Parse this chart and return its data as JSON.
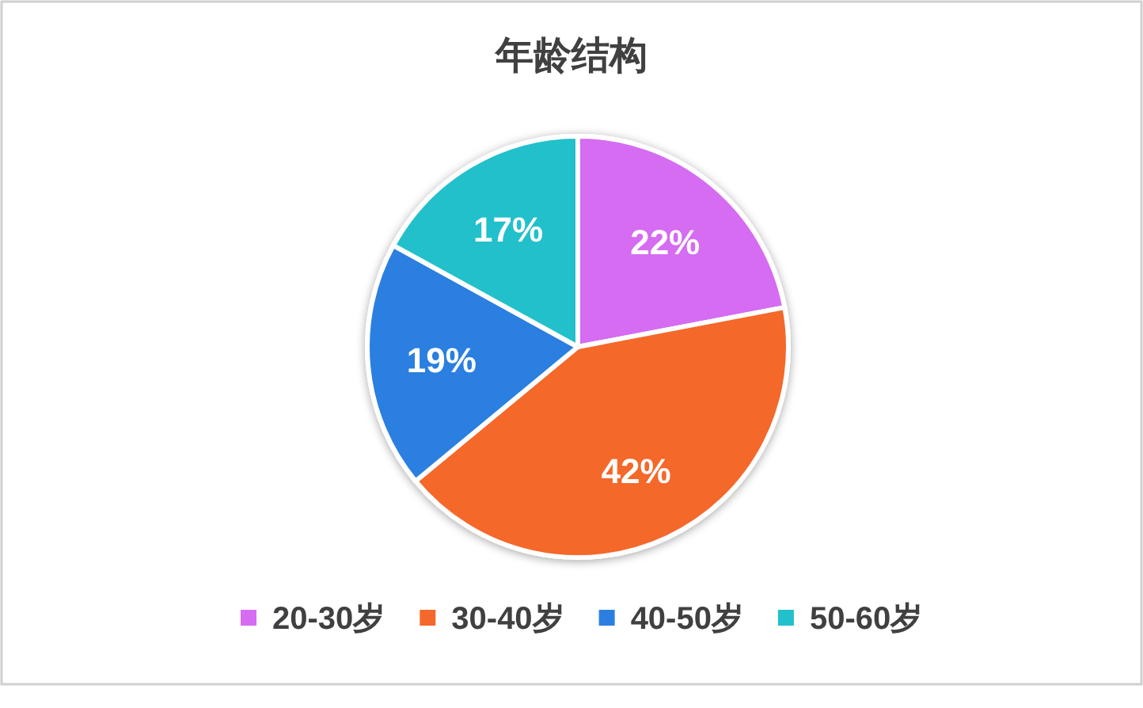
{
  "chart_data": {
    "type": "pie",
    "title": "年龄结构",
    "categories": [
      "20-30岁",
      "30-40岁",
      "40-50岁",
      "50-60岁"
    ],
    "values": [
      22,
      42,
      19,
      17
    ],
    "colors": [
      "#d56cf2",
      "#f4682c",
      "#2b7fe0",
      "#22c0cb"
    ],
    "value_labels": [
      "22%",
      "42%",
      "19%",
      "17%"
    ],
    "legend": "bottom"
  }
}
